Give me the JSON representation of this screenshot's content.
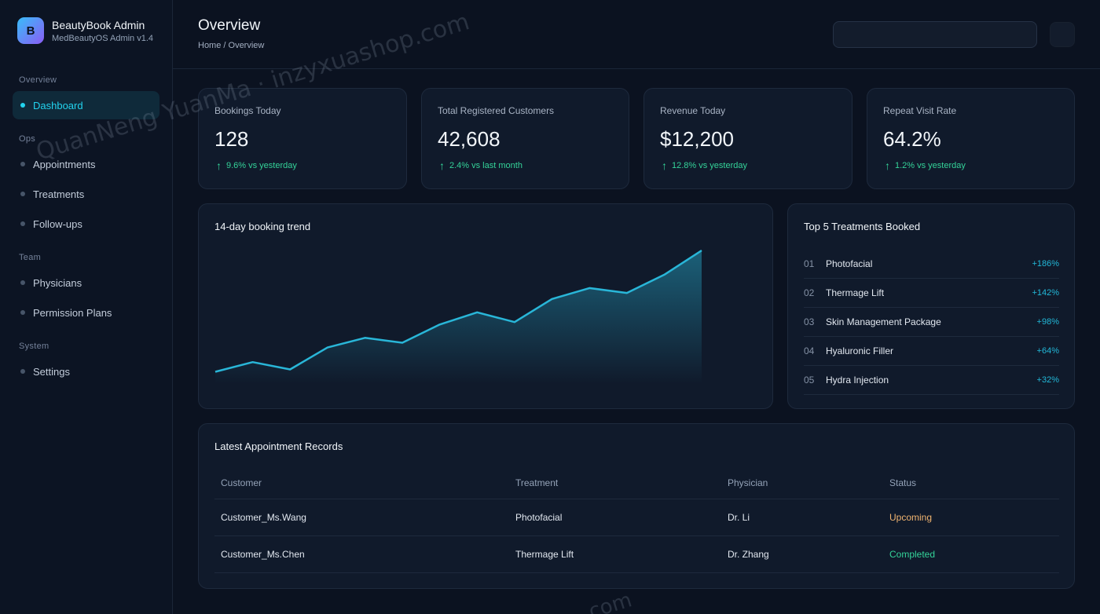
{
  "brand": {
    "logo_letter": "B",
    "title": "BeautyBook Admin",
    "subtitle": "MedBeautyOS Admin v1.4"
  },
  "sidebar": {
    "sections": {
      "overview": "Overview",
      "ops": "Ops",
      "team": "Team",
      "system": "System"
    },
    "items": [
      {
        "label": "Dashboard",
        "active": true
      },
      {
        "label": "Appointments"
      },
      {
        "label": "Treatments"
      },
      {
        "label": "Follow-ups"
      },
      {
        "label": "Physicians"
      },
      {
        "label": "Permission Plans"
      },
      {
        "label": "Settings"
      }
    ]
  },
  "header": {
    "title": "Overview",
    "breadcrumb": "Home / Overview",
    "search_value": ""
  },
  "stats": [
    {
      "label": "Bookings Today",
      "value": "128",
      "delta": "9.6% vs yesterday"
    },
    {
      "label": "Total Registered Customers",
      "value": "42,608",
      "delta": "2.4% vs last month"
    },
    {
      "label": "Revenue Today",
      "value": "$12,200",
      "delta": "12.8% vs yesterday"
    },
    {
      "label": "Repeat Visit Rate",
      "value": "64.2%",
      "delta": "1.2% vs yesterday"
    }
  ],
  "delta_arrow": "↑",
  "trend": {
    "title": "14-day booking trend"
  },
  "chart_data": {
    "type": "area",
    "title": "14-day booking trend",
    "x": [
      1,
      2,
      3,
      4,
      5,
      6,
      7,
      8,
      9,
      10,
      11,
      12,
      13,
      14
    ],
    "series": [
      {
        "values": [
          10,
          18,
          12,
          30,
          38,
          34,
          49,
          59,
          51,
          70,
          79,
          75,
          90,
          110
        ]
      }
    ],
    "ylim": [
      0,
      110
    ],
    "grid": false,
    "color": "#29b6d8"
  },
  "top_treatments": {
    "title": "Top 5 Treatments Booked",
    "items": [
      {
        "rank": "01",
        "name": "Photofacial",
        "change": "+186%"
      },
      {
        "rank": "02",
        "name": "Thermage Lift",
        "change": "+142%"
      },
      {
        "rank": "03",
        "name": "Skin Management Package",
        "change": "+98%"
      },
      {
        "rank": "04",
        "name": "Hyaluronic Filler",
        "change": "+64%"
      },
      {
        "rank": "05",
        "name": "Hydra Injection",
        "change": "+32%"
      }
    ]
  },
  "appointments": {
    "title": "Latest Appointment Records",
    "columns": [
      "Customer",
      "Treatment",
      "Physician",
      "Status"
    ],
    "rows": [
      {
        "customer": "Customer_Ms.Wang",
        "treatment": "Photofacial",
        "physician": "Dr. Li",
        "status": "Upcoming",
        "status_color": "#f0b470"
      },
      {
        "customer": "Customer_Ms.Chen",
        "treatment": "Thermage Lift",
        "physician": "Dr. Zhang",
        "status": "Completed",
        "status_color": "#34d399"
      }
    ]
  },
  "watermark": {
    "text": "QuanNeng YuanMa · inzyxuashop.com",
    "text2": ".com"
  },
  "colors": {
    "accent": "#22d3ee",
    "positive": "#34d399",
    "upcoming": "#f0b470"
  }
}
